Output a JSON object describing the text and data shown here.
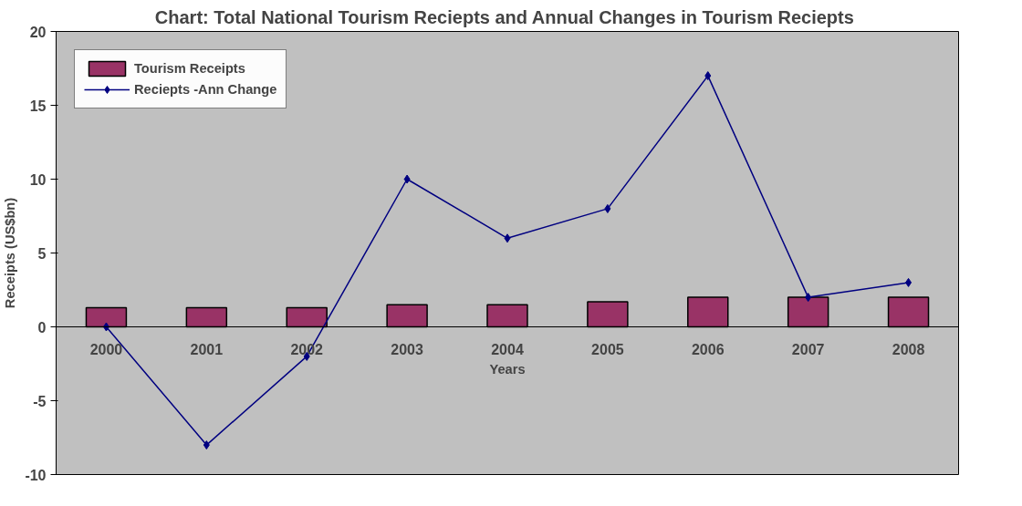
{
  "chart_data": {
    "type": "bar",
    "title": "Chart:  Total National Tourism Reciepts and Annual Changes in Tourism Reciepts",
    "xlabel": "Years",
    "ylabel": "Receipts (US$bn)",
    "categories": [
      "2000",
      "2001",
      "2002",
      "2003",
      "2004",
      "2005",
      "2006",
      "2007",
      "2008"
    ],
    "series": [
      {
        "name": "Tourism Receipts",
        "color": "#993366",
        "values": [
          1.3,
          1.3,
          1.3,
          1.5,
          1.5,
          1.7,
          2.0,
          2.0,
          2.0
        ]
      },
      {
        "name": "Reciepts -Ann Change",
        "type": "line",
        "color": "#000080",
        "marker": "diamond",
        "values": [
          0,
          -8,
          -2,
          10,
          6,
          8,
          17,
          2,
          3
        ]
      }
    ],
    "ylim": [
      -10,
      20
    ],
    "yticks": [
      -10,
      -5,
      0,
      5,
      10,
      15,
      20
    ],
    "grid": false,
    "legend": "top left"
  }
}
